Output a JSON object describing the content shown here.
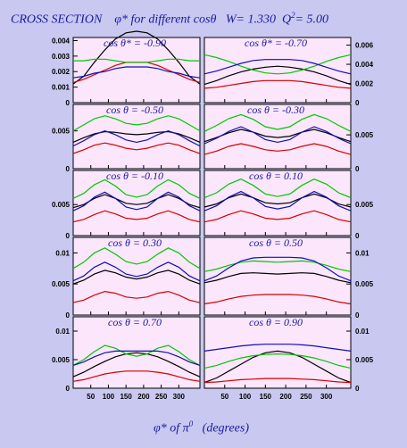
{
  "title": {
    "main": "CROSS SECTION",
    "phi": "φ* for different cosθ",
    "w": "W= 1.330",
    "q2": "Q",
    "q2_sup": "2",
    "q2_val": "= 5.00"
  },
  "xaxis_label": {
    "pre": "φ* of π",
    "sup": "0",
    "post": "(degrees)"
  },
  "colors": {
    "black": "#000000",
    "red": "#d40000",
    "green": "#00c800",
    "blue": "#1010b0"
  },
  "chart_data": [
    {
      "type": "line",
      "label": "cos θ* = -0.90",
      "position": "row1-left",
      "ylim": [
        0,
        0.0042
      ],
      "yticks": [
        "0",
        "0.001",
        "0.002",
        "0.003",
        "0.004"
      ],
      "x": [
        0,
        30,
        60,
        90,
        120,
        150,
        180,
        210,
        240,
        270,
        300,
        330,
        360
      ],
      "series": [
        {
          "color": "black",
          "values": [
            0.0012,
            0.0017,
            0.0026,
            0.0034,
            0.0041,
            0.0045,
            0.0046,
            0.0045,
            0.0041,
            0.0034,
            0.0026,
            0.0017,
            0.0012
          ]
        },
        {
          "color": "red",
          "values": [
            0.0013,
            0.0015,
            0.0018,
            0.0021,
            0.0024,
            0.0026,
            0.0026,
            0.0026,
            0.0024,
            0.0021,
            0.0018,
            0.0015,
            0.0013
          ]
        },
        {
          "color": "green",
          "values": [
            0.0027,
            0.0027,
            0.0028,
            0.0028,
            0.0027,
            0.0026,
            0.0026,
            0.0026,
            0.0027,
            0.0028,
            0.0028,
            0.0027,
            0.0027
          ]
        },
        {
          "color": "blue",
          "values": [
            0.0016,
            0.0017,
            0.0019,
            0.002,
            0.0022,
            0.0023,
            0.0023,
            0.0023,
            0.0022,
            0.002,
            0.0019,
            0.0017,
            0.0016
          ]
        }
      ]
    },
    {
      "type": "line",
      "label": "cos θ* = -0.70",
      "position": "row1-right",
      "ylim": [
        0,
        0.0068
      ],
      "yticks": [
        "0",
        "0.002",
        "0.004",
        "0.006"
      ],
      "x": [
        0,
        30,
        60,
        90,
        120,
        150,
        180,
        210,
        240,
        270,
        300,
        330,
        360
      ],
      "series": [
        {
          "color": "black",
          "values": [
            0.0019,
            0.0023,
            0.0028,
            0.0032,
            0.0035,
            0.0037,
            0.0038,
            0.0037,
            0.0035,
            0.0032,
            0.0028,
            0.0023,
            0.0019
          ]
        },
        {
          "color": "red",
          "values": [
            0.0015,
            0.0016,
            0.0018,
            0.002,
            0.0022,
            0.0023,
            0.0023,
            0.0023,
            0.0022,
            0.002,
            0.0018,
            0.0016,
            0.0015
          ]
        },
        {
          "color": "green",
          "values": [
            0.005,
            0.0047,
            0.0043,
            0.0038,
            0.0034,
            0.0031,
            0.003,
            0.0031,
            0.0034,
            0.0038,
            0.0043,
            0.0047,
            0.005
          ]
        },
        {
          "color": "blue",
          "values": [
            0.003,
            0.0033,
            0.0037,
            0.0041,
            0.0044,
            0.0045,
            0.0045,
            0.0045,
            0.0044,
            0.0041,
            0.0037,
            0.0033,
            0.003
          ]
        }
      ]
    },
    {
      "type": "line",
      "label": "cos θ = -0.50",
      "position": "row2-left",
      "ylim": [
        0,
        0.0085
      ],
      "yticks": [
        "0",
        "0.005"
      ],
      "x": [
        0,
        30,
        60,
        90,
        120,
        150,
        180,
        210,
        240,
        270,
        300,
        330,
        360
      ],
      "series": [
        {
          "color": "black",
          "values": [
            0.0035,
            0.0041,
            0.0046,
            0.0049,
            0.0048,
            0.0046,
            0.0045,
            0.0046,
            0.0048,
            0.0049,
            0.0046,
            0.0041,
            0.0035
          ]
        },
        {
          "color": "red",
          "values": [
            0.002,
            0.0025,
            0.0031,
            0.0034,
            0.0031,
            0.0027,
            0.0025,
            0.0027,
            0.0031,
            0.0034,
            0.0031,
            0.0025,
            0.002
          ]
        },
        {
          "color": "green",
          "values": [
            0.005,
            0.0058,
            0.0066,
            0.007,
            0.0066,
            0.006,
            0.0058,
            0.006,
            0.0066,
            0.007,
            0.0066,
            0.0058,
            0.005
          ]
        },
        {
          "color": "blue",
          "values": [
            0.003,
            0.0037,
            0.0045,
            0.005,
            0.0045,
            0.0038,
            0.0035,
            0.0038,
            0.0045,
            0.005,
            0.0045,
            0.0037,
            0.003
          ]
        }
      ]
    },
    {
      "type": "line",
      "label": "cos θ = -0.30",
      "position": "row2-right",
      "ylim": [
        0,
        0.0095
      ],
      "yticks": [
        "0",
        "0.005"
      ],
      "x": [
        0,
        30,
        60,
        90,
        120,
        150,
        180,
        210,
        240,
        270,
        300,
        330,
        360
      ],
      "series": [
        {
          "color": "black",
          "values": [
            0.004,
            0.0046,
            0.0053,
            0.0058,
            0.0054,
            0.0048,
            0.0046,
            0.0048,
            0.0054,
            0.0058,
            0.0053,
            0.0046,
            0.004
          ]
        },
        {
          "color": "red",
          "values": [
            0.0021,
            0.0026,
            0.0033,
            0.0037,
            0.0033,
            0.0028,
            0.0026,
            0.0028,
            0.0033,
            0.0037,
            0.0033,
            0.0026,
            0.0021
          ]
        },
        {
          "color": "green",
          "values": [
            0.0055,
            0.0064,
            0.0074,
            0.008,
            0.0073,
            0.0062,
            0.0058,
            0.0062,
            0.0073,
            0.008,
            0.0074,
            0.0064,
            0.0055
          ]
        },
        {
          "color": "blue",
          "values": [
            0.0037,
            0.0045,
            0.0055,
            0.0062,
            0.0054,
            0.0043,
            0.0039,
            0.0043,
            0.0054,
            0.0062,
            0.0055,
            0.0045,
            0.0037
          ]
        }
      ]
    },
    {
      "type": "line",
      "label": "cos θ = -0.10",
      "position": "row3-left",
      "ylim": [
        0,
        0.0105
      ],
      "yticks": [
        "0",
        "0.005"
      ],
      "x": [
        0,
        30,
        60,
        90,
        120,
        150,
        180,
        210,
        240,
        270,
        300,
        330,
        360
      ],
      "series": [
        {
          "color": "black",
          "values": [
            0.0045,
            0.005,
            0.006,
            0.0066,
            0.006,
            0.0052,
            0.005,
            0.0052,
            0.006,
            0.0066,
            0.006,
            0.005,
            0.0045
          ]
        },
        {
          "color": "red",
          "values": [
            0.0022,
            0.0026,
            0.0034,
            0.004,
            0.0035,
            0.0028,
            0.0026,
            0.0028,
            0.0035,
            0.004,
            0.0034,
            0.0026,
            0.0022
          ]
        },
        {
          "color": "green",
          "values": [
            0.006,
            0.0068,
            0.0082,
            0.009,
            0.008,
            0.0066,
            0.0062,
            0.0066,
            0.008,
            0.009,
            0.0082,
            0.0068,
            0.006
          ]
        },
        {
          "color": "blue",
          "values": [
            0.004,
            0.0048,
            0.0062,
            0.007,
            0.006,
            0.0046,
            0.0042,
            0.0046,
            0.006,
            0.007,
            0.0062,
            0.0048,
            0.004
          ]
        }
      ]
    },
    {
      "type": "line",
      "label": "cos θ = 0.10",
      "position": "row3-right",
      "ylim": [
        0,
        0.0105
      ],
      "yticks": [
        "0",
        "0.005"
      ],
      "x": [
        0,
        30,
        60,
        90,
        120,
        150,
        180,
        210,
        240,
        270,
        300,
        330,
        360
      ],
      "series": [
        {
          "color": "black",
          "values": [
            0.0046,
            0.0051,
            0.0061,
            0.0067,
            0.0061,
            0.0053,
            0.0051,
            0.0053,
            0.0061,
            0.0067,
            0.0061,
            0.0051,
            0.0046
          ]
        },
        {
          "color": "red",
          "values": [
            0.0022,
            0.0026,
            0.0034,
            0.004,
            0.0035,
            0.0028,
            0.0026,
            0.0028,
            0.0035,
            0.004,
            0.0034,
            0.0026,
            0.0022
          ]
        },
        {
          "color": "green",
          "values": [
            0.0061,
            0.0069,
            0.0083,
            0.0091,
            0.0081,
            0.0067,
            0.0063,
            0.0067,
            0.0081,
            0.0091,
            0.0083,
            0.0069,
            0.0061
          ]
        },
        {
          "color": "blue",
          "values": [
            0.004,
            0.0048,
            0.0062,
            0.0071,
            0.0061,
            0.0047,
            0.0043,
            0.0047,
            0.0061,
            0.0071,
            0.0062,
            0.0048,
            0.004
          ]
        }
      ]
    },
    {
      "type": "line",
      "label": "cos θ = 0.30",
      "position": "row4-left",
      "ylim": [
        0,
        0.0125
      ],
      "yticks": [
        "0",
        "0.005",
        "0.01"
      ],
      "x": [
        0,
        30,
        60,
        90,
        120,
        150,
        180,
        210,
        240,
        270,
        300,
        330,
        360
      ],
      "series": [
        {
          "color": "black",
          "values": [
            0.005,
            0.0056,
            0.0066,
            0.0072,
            0.0068,
            0.0061,
            0.0058,
            0.0061,
            0.0068,
            0.0072,
            0.0066,
            0.0056,
            0.005
          ]
        },
        {
          "color": "red",
          "values": [
            0.002,
            0.0024,
            0.0032,
            0.0038,
            0.0035,
            0.0029,
            0.0027,
            0.0029,
            0.0035,
            0.0038,
            0.0032,
            0.0024,
            0.002
          ]
        },
        {
          "color": "green",
          "values": [
            0.0075,
            0.0085,
            0.01,
            0.0108,
            0.0098,
            0.0086,
            0.0082,
            0.0086,
            0.0098,
            0.0108,
            0.01,
            0.0085,
            0.0075
          ]
        },
        {
          "color": "blue",
          "values": [
            0.0055,
            0.0063,
            0.0077,
            0.0085,
            0.0077,
            0.0066,
            0.0062,
            0.0066,
            0.0077,
            0.0085,
            0.0077,
            0.0063,
            0.0055
          ]
        }
      ]
    },
    {
      "type": "line",
      "label": "cos θ = 0.50",
      "position": "row4-right",
      "ylim": [
        0,
        0.0125
      ],
      "yticks": [
        "0",
        "0.005",
        "0.01"
      ],
      "x": [
        0,
        30,
        60,
        90,
        120,
        150,
        180,
        210,
        240,
        270,
        300,
        330,
        360
      ],
      "series": [
        {
          "color": "black",
          "values": [
            0.0052,
            0.0056,
            0.0062,
            0.0067,
            0.0068,
            0.0067,
            0.0066,
            0.0067,
            0.0068,
            0.0067,
            0.0062,
            0.0056,
            0.0052
          ]
        },
        {
          "color": "red",
          "values": [
            0.0018,
            0.0021,
            0.0026,
            0.003,
            0.0032,
            0.0033,
            0.0033,
            0.0033,
            0.0032,
            0.003,
            0.0026,
            0.0021,
            0.0018
          ]
        },
        {
          "color": "green",
          "values": [
            0.007,
            0.0074,
            0.008,
            0.0085,
            0.0087,
            0.0086,
            0.0085,
            0.0086,
            0.0087,
            0.0085,
            0.008,
            0.0074,
            0.007
          ]
        },
        {
          "color": "blue",
          "values": [
            0.0055,
            0.0063,
            0.0076,
            0.0087,
            0.0092,
            0.0093,
            0.0093,
            0.0093,
            0.0092,
            0.0087,
            0.0076,
            0.0063,
            0.0055
          ]
        }
      ]
    },
    {
      "type": "line",
      "label": "cos θ = 0.70",
      "position": "row5-left",
      "ylim": [
        0,
        0.0125
      ],
      "yticks": [
        "0",
        "0.005",
        "0.01"
      ],
      "x": [
        0,
        30,
        60,
        90,
        120,
        150,
        180,
        210,
        240,
        270,
        300,
        330,
        360
      ],
      "series": [
        {
          "color": "black",
          "values": [
            0.002,
            0.0028,
            0.0038,
            0.0047,
            0.0055,
            0.006,
            0.0062,
            0.006,
            0.0055,
            0.0047,
            0.0038,
            0.0028,
            0.002
          ]
        },
        {
          "color": "red",
          "values": [
            0.0012,
            0.0015,
            0.002,
            0.0025,
            0.0028,
            0.003,
            0.003,
            0.003,
            0.0028,
            0.0025,
            0.002,
            0.0015,
            0.0012
          ]
        },
        {
          "color": "green",
          "values": [
            0.004,
            0.005,
            0.0064,
            0.0075,
            0.007,
            0.006,
            0.0056,
            0.006,
            0.007,
            0.0075,
            0.0064,
            0.005,
            0.004
          ]
        },
        {
          "color": "blue",
          "values": [
            0.004,
            0.0046,
            0.0055,
            0.0062,
            0.0065,
            0.0065,
            0.0065,
            0.0065,
            0.0065,
            0.0062,
            0.0055,
            0.0046,
            0.004
          ]
        }
      ]
    },
    {
      "type": "line",
      "label": "cos θ = 0.90",
      "position": "row5-right",
      "ylim": [
        0,
        0.0125
      ],
      "yticks": [
        "0",
        "0.005",
        "0.01"
      ],
      "x": [
        0,
        30,
        60,
        90,
        120,
        150,
        180,
        210,
        240,
        270,
        300,
        330,
        360
      ],
      "series": [
        {
          "color": "black",
          "values": [
            0.001,
            0.0018,
            0.003,
            0.0042,
            0.0054,
            0.0062,
            0.0065,
            0.0062,
            0.0054,
            0.0042,
            0.003,
            0.0018,
            0.001
          ]
        },
        {
          "color": "red",
          "values": [
            0.001,
            0.0011,
            0.0013,
            0.0015,
            0.0016,
            0.0017,
            0.0017,
            0.0017,
            0.0016,
            0.0015,
            0.0013,
            0.0011,
            0.001
          ]
        },
        {
          "color": "green",
          "values": [
            0.0035,
            0.004,
            0.0047,
            0.0053,
            0.0057,
            0.0059,
            0.006,
            0.0059,
            0.0057,
            0.0053,
            0.0047,
            0.004,
            0.0035
          ]
        },
        {
          "color": "blue",
          "values": [
            0.0065,
            0.0068,
            0.0071,
            0.0074,
            0.0076,
            0.0077,
            0.0077,
            0.0077,
            0.0076,
            0.0074,
            0.0071,
            0.0068,
            0.0065
          ]
        }
      ]
    }
  ],
  "xticks": [
    "50",
    "100",
    "150",
    "200",
    "250",
    "300"
  ]
}
